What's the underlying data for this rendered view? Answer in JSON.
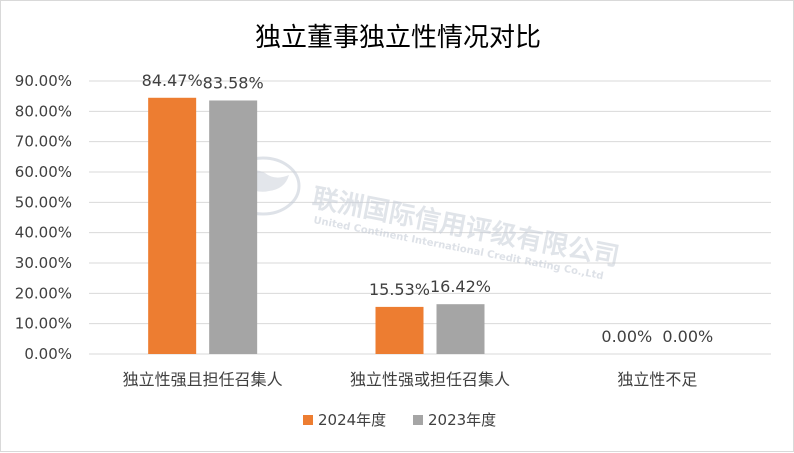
{
  "chart_data": {
    "type": "bar",
    "title": "独立董事独立性情况对比",
    "categories": [
      "独立性强且担任召集人",
      "独立性强或担任召集人",
      "独立性不足"
    ],
    "series": [
      {
        "name": "2024年度",
        "color": "#ED7D31",
        "values": [
          84.47,
          15.53,
          0.0
        ],
        "labels": [
          "84.47%",
          "15.53%",
          "0.00%"
        ]
      },
      {
        "name": "2023年度",
        "color": "#A5A5A5",
        "values": [
          83.58,
          16.42,
          0.0
        ],
        "labels": [
          "83.58%",
          "16.42%",
          "0.00%"
        ]
      }
    ],
    "y_ticks": [
      "0.00%",
      "10.00%",
      "20.00%",
      "30.00%",
      "40.00%",
      "50.00%",
      "60.00%",
      "70.00%",
      "80.00%",
      "90.00%"
    ],
    "ylim": [
      0,
      90
    ],
    "grid": true,
    "legend_position": "bottom",
    "xlabel": "",
    "ylabel": ""
  },
  "watermark": {
    "company": "联洲国际信用评级有限公司",
    "english": "United Continent International Credit Rating Co.,Ltd"
  }
}
